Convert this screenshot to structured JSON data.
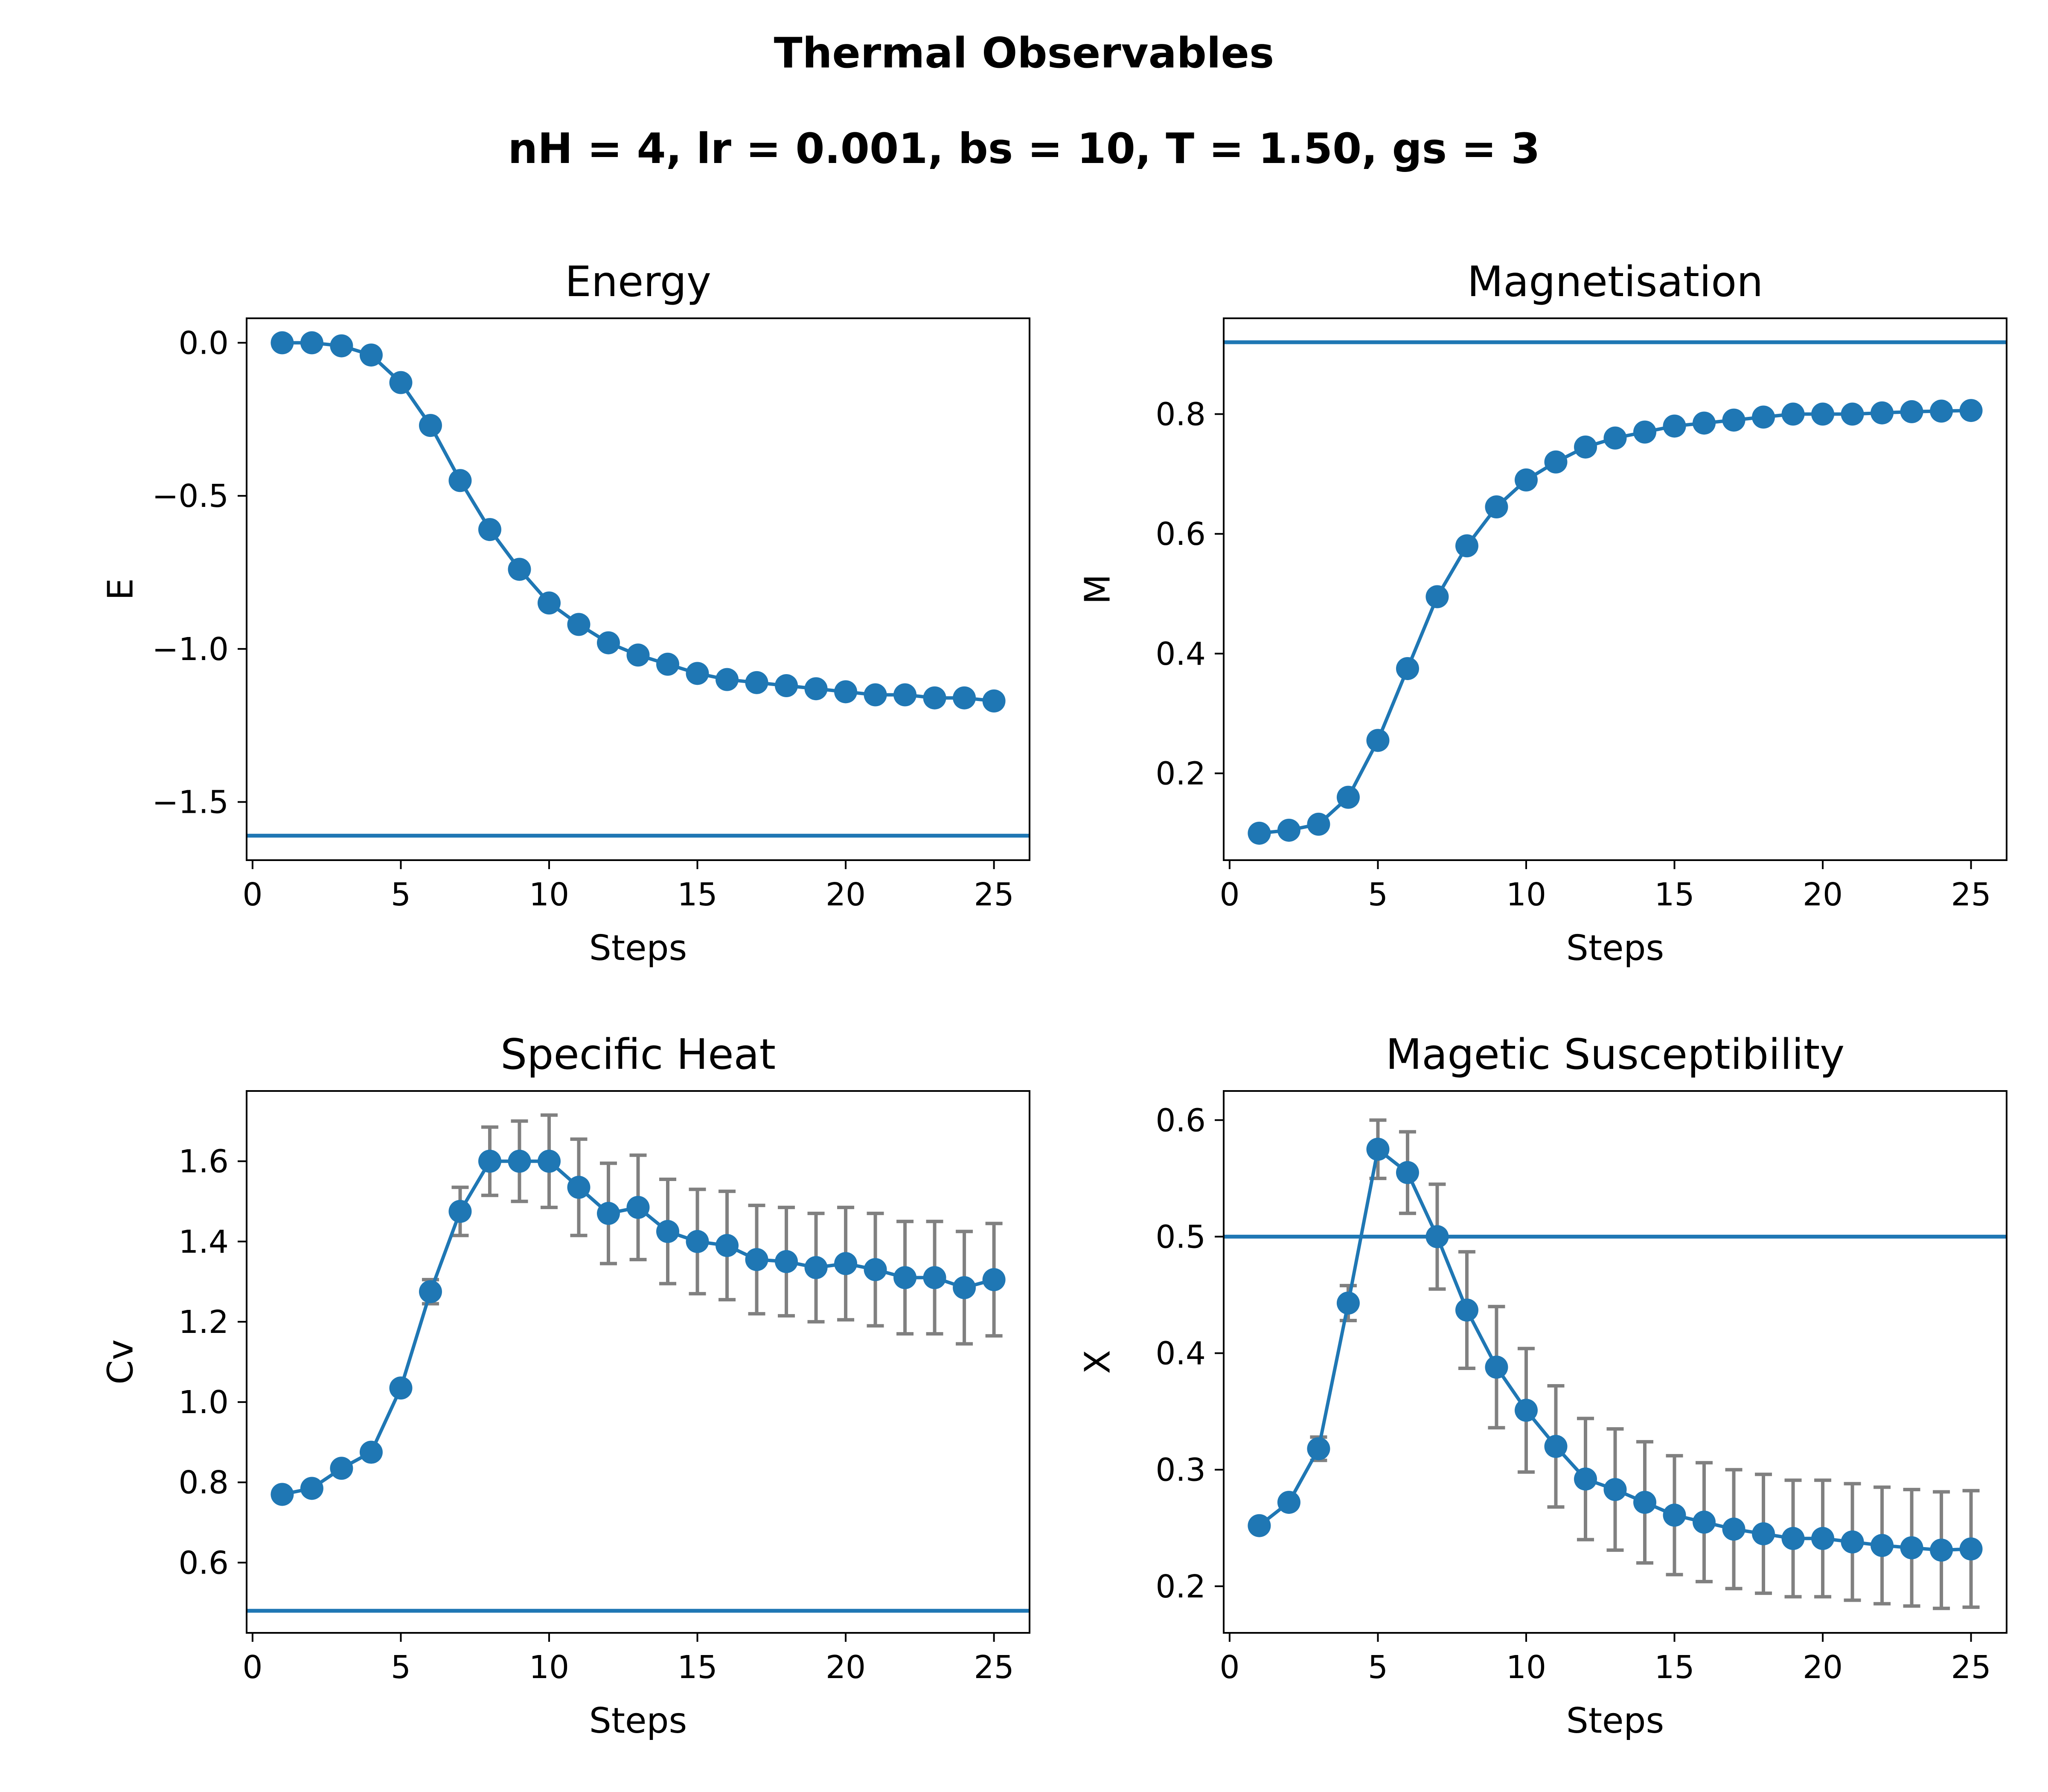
{
  "figure": {
    "title": "Thermal Observables",
    "subtitle": "nH = 4, lr = 0.001, bs = 10,  T = 1.50, gs = 3"
  },
  "colors": {
    "series": "#1f77b4",
    "errorbar": "#808080",
    "axes": "#000000"
  },
  "chart_data": [
    {
      "name": "energy",
      "type": "line",
      "title": "Energy",
      "xlabel": "Steps",
      "ylabel": "E",
      "xlim": [
        -0.2,
        26.2
      ],
      "ylim": [
        -1.69,
        0.08
      ],
      "xticks": [
        0,
        5,
        10,
        15,
        20,
        25
      ],
      "xtick_labels": [
        "0",
        "5",
        "10",
        "15",
        "20",
        "25"
      ],
      "yticks": [
        0.0,
        -0.5,
        -1.0,
        -1.5
      ],
      "ytick_labels": [
        "0.0",
        "−0.5",
        "−1.0",
        "−1.5"
      ],
      "x": [
        1,
        2,
        3,
        4,
        5,
        6,
        7,
        8,
        9,
        10,
        11,
        12,
        13,
        14,
        15,
        16,
        17,
        18,
        19,
        20,
        21,
        22,
        23,
        24,
        25
      ],
      "y": [
        0.0,
        0.0,
        -0.01,
        -0.04,
        -0.13,
        -0.27,
        -0.45,
        -0.61,
        -0.74,
        -0.85,
        -0.92,
        -0.98,
        -1.02,
        -1.05,
        -1.08,
        -1.1,
        -1.11,
        -1.12,
        -1.13,
        -1.14,
        -1.15,
        -1.15,
        -1.16,
        -1.16,
        -1.17
      ],
      "reference_line": -1.61
    },
    {
      "name": "magnetisation",
      "type": "line",
      "title": "Magnetisation",
      "xlabel": "Steps",
      "ylabel": "M",
      "xlim": [
        -0.2,
        26.2
      ],
      "ylim": [
        0.055,
        0.96
      ],
      "xticks": [
        0,
        5,
        10,
        15,
        20,
        25
      ],
      "xtick_labels": [
        "0",
        "5",
        "10",
        "15",
        "20",
        "25"
      ],
      "yticks": [
        0.2,
        0.4,
        0.6,
        0.8
      ],
      "ytick_labels": [
        "0.2",
        "0.4",
        "0.6",
        "0.8"
      ],
      "x": [
        1,
        2,
        3,
        4,
        5,
        6,
        7,
        8,
        9,
        10,
        11,
        12,
        13,
        14,
        15,
        16,
        17,
        18,
        19,
        20,
        21,
        22,
        23,
        24,
        25
      ],
      "y": [
        0.1,
        0.105,
        0.115,
        0.16,
        0.255,
        0.375,
        0.495,
        0.58,
        0.645,
        0.69,
        0.72,
        0.745,
        0.76,
        0.77,
        0.78,
        0.785,
        0.79,
        0.795,
        0.8,
        0.8,
        0.8,
        0.802,
        0.804,
        0.805,
        0.806
      ],
      "reference_line": 0.92
    },
    {
      "name": "specific-heat",
      "type": "line",
      "title": "Specific Heat",
      "xlabel": "Steps",
      "ylabel": "Cv",
      "xlim": [
        -0.2,
        26.2
      ],
      "ylim": [
        0.425,
        1.775
      ],
      "xticks": [
        0,
        5,
        10,
        15,
        20,
        25
      ],
      "xtick_labels": [
        "0",
        "5",
        "10",
        "15",
        "20",
        "25"
      ],
      "yticks": [
        0.6,
        0.8,
        1.0,
        1.2,
        1.4,
        1.6
      ],
      "ytick_labels": [
        "0.6",
        "0.8",
        "1.0",
        "1.2",
        "1.4",
        "1.6"
      ],
      "x": [
        1,
        2,
        3,
        4,
        5,
        6,
        7,
        8,
        9,
        10,
        11,
        12,
        13,
        14,
        15,
        16,
        17,
        18,
        19,
        20,
        21,
        22,
        23,
        24,
        25
      ],
      "y": [
        0.77,
        0.785,
        0.835,
        0.875,
        1.035,
        1.275,
        1.475,
        1.6,
        1.6,
        1.6,
        1.535,
        1.47,
        1.485,
        1.425,
        1.4,
        1.39,
        1.355,
        1.35,
        1.335,
        1.345,
        1.33,
        1.31,
        1.31,
        1.285,
        1.305
      ],
      "yerr": [
        0,
        0,
        0,
        0,
        0,
        0.03,
        0.06,
        0.085,
        0.1,
        0.115,
        0.12,
        0.125,
        0.13,
        0.13,
        0.13,
        0.135,
        0.135,
        0.135,
        0.135,
        0.14,
        0.14,
        0.14,
        0.14,
        0.14,
        0.14
      ],
      "reference_line": 0.48
    },
    {
      "name": "susceptibility",
      "type": "line",
      "title": "Magetic Susceptibility",
      "xlabel": "Steps",
      "ylabel": "X",
      "xlim": [
        -0.2,
        26.2
      ],
      "ylim": [
        0.16,
        0.625
      ],
      "xticks": [
        0,
        5,
        10,
        15,
        20,
        25
      ],
      "xtick_labels": [
        "0",
        "5",
        "10",
        "15",
        "20",
        "25"
      ],
      "yticks": [
        0.2,
        0.3,
        0.4,
        0.5,
        0.6
      ],
      "ytick_labels": [
        "0.2",
        "0.3",
        "0.4",
        "0.5",
        "0.6"
      ],
      "x": [
        1,
        2,
        3,
        4,
        5,
        6,
        7,
        8,
        9,
        10,
        11,
        12,
        13,
        14,
        15,
        16,
        17,
        18,
        19,
        20,
        21,
        22,
        23,
        24,
        25
      ],
      "y": [
        0.252,
        0.272,
        0.318,
        0.443,
        0.575,
        0.555,
        0.5,
        0.437,
        0.388,
        0.351,
        0.32,
        0.292,
        0.283,
        0.272,
        0.261,
        0.255,
        0.249,
        0.245,
        0.241,
        0.241,
        0.238,
        0.235,
        0.233,
        0.231,
        0.232
      ],
      "yerr": [
        0,
        0.005,
        0.01,
        0.015,
        0.025,
        0.035,
        0.045,
        0.05,
        0.052,
        0.053,
        0.052,
        0.052,
        0.052,
        0.052,
        0.051,
        0.051,
        0.051,
        0.051,
        0.05,
        0.05,
        0.05,
        0.05,
        0.05,
        0.05,
        0.05
      ],
      "reference_line": 0.5
    }
  ]
}
